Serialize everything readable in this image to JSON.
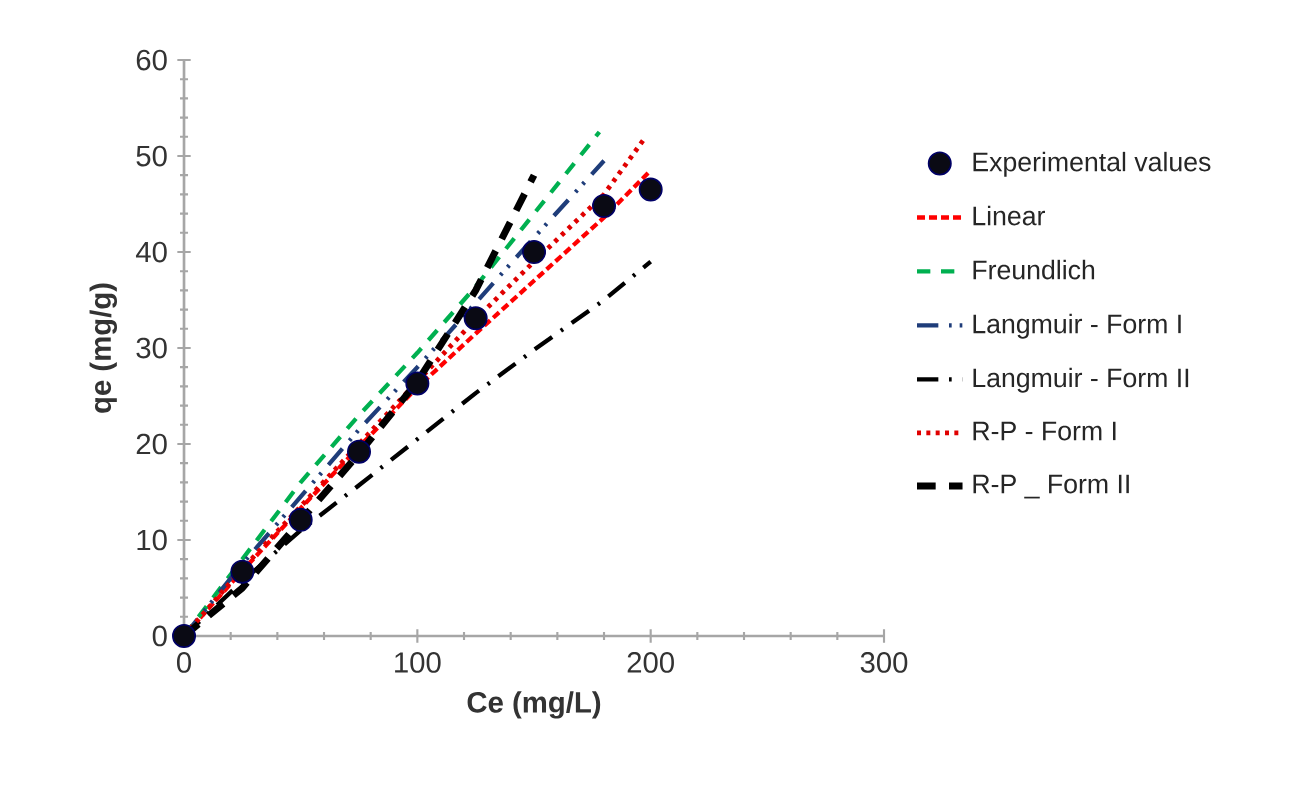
{
  "chart_data": {
    "type": "line",
    "xlabel": "Ce (mg/L)",
    "ylabel": "qe (mg/g)",
    "xlim": [
      0,
      300
    ],
    "ylim": [
      0,
      60
    ],
    "xticks": [
      0,
      100,
      200,
      300
    ],
    "yticks": [
      0,
      10,
      20,
      30,
      40,
      50,
      60
    ],
    "grid": false,
    "legend": "right",
    "series": [
      {
        "name": "Experimental values",
        "type": "scatter",
        "marker": "circle",
        "color": "#0a0a14",
        "x": [
          0,
          25,
          50,
          75,
          100,
          125,
          150,
          180,
          200
        ],
        "values": [
          0,
          6.7,
          12.1,
          19.2,
          26.3,
          33.1,
          40.0,
          44.8,
          46.5
        ]
      },
      {
        "name": "Linear",
        "line_style": "dashed",
        "color": "#ff0000",
        "x": [
          0,
          25,
          50,
          75,
          100,
          125,
          150,
          180,
          200
        ],
        "values": [
          0,
          6.8,
          13.3,
          19.7,
          25.9,
          31.5,
          37.0,
          43.6,
          48.5
        ]
      },
      {
        "name": "Freundlich",
        "line_style": "loosedashed",
        "color": "#00b050",
        "x": [
          0,
          25,
          50,
          75,
          100,
          125,
          150,
          178
        ],
        "values": [
          0,
          8,
          16,
          23,
          29.5,
          36.4,
          44,
          52.5
        ]
      },
      {
        "name": "Langmuir - Form I",
        "line_style": "dashdotdot",
        "color": "#1f3d7a",
        "x": [
          0,
          25,
          50,
          75,
          100,
          125,
          150,
          180
        ],
        "values": [
          0,
          7.5,
          14.5,
          21.5,
          28,
          34.7,
          41.5,
          49.5
        ]
      },
      {
        "name": "Langmuir - Form II",
        "line_style": "dashdot",
        "color": "#000000",
        "x": [
          0,
          25,
          50,
          75,
          100,
          125,
          150,
          180,
          200
        ],
        "values": [
          0,
          5.7,
          11,
          15.7,
          20.5,
          25.3,
          29.8,
          35,
          39
        ]
      },
      {
        "name": "R-P - Form I",
        "line_style": "dotted",
        "color": "#e00000",
        "x": [
          0,
          25,
          50,
          75,
          100,
          125,
          150,
          180,
          197
        ],
        "values": [
          0,
          7,
          13.5,
          20,
          26.5,
          33,
          39,
          46,
          51.7
        ]
      },
      {
        "name": "R-P _ Form II",
        "line_style": "thickdashed",
        "color": "#000000",
        "x": [
          0,
          25,
          50,
          75,
          100,
          125,
          150
        ],
        "values": [
          0,
          5,
          12,
          19,
          26.5,
          36,
          48
        ]
      }
    ]
  }
}
